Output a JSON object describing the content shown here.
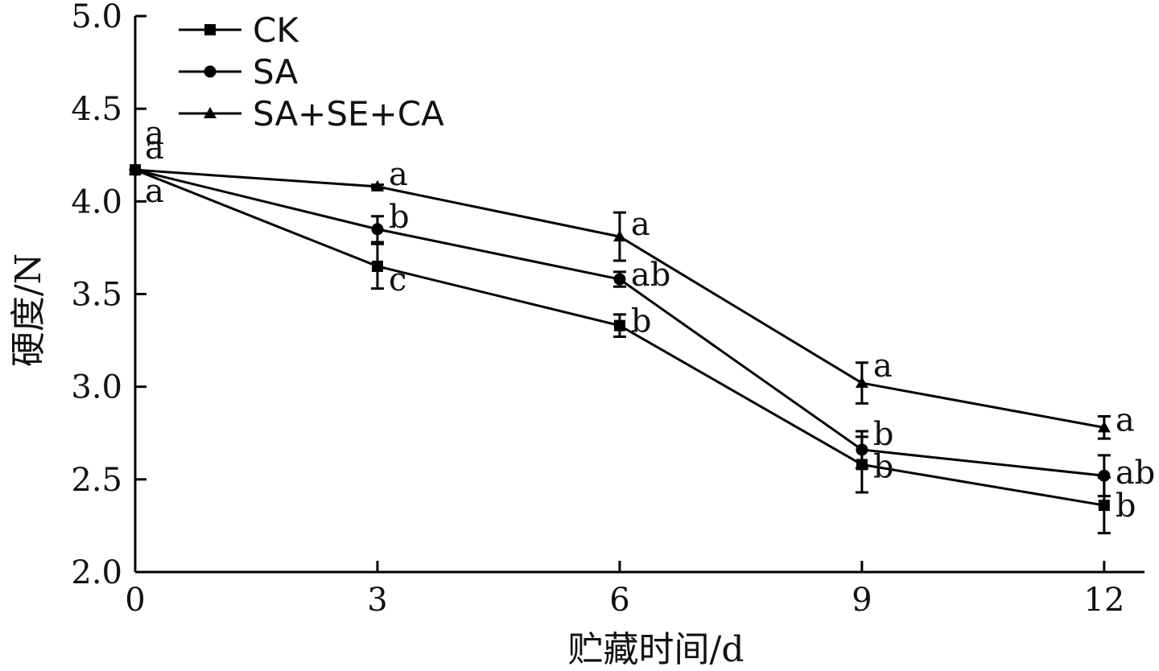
{
  "chart_data": {
    "type": "line",
    "xlabel": "贮藏时间/d",
    "ylabel": "硬度/N",
    "x": [
      0,
      3,
      6,
      9,
      12
    ],
    "x_ticks": [
      "0",
      "3",
      "6",
      "9",
      "12"
    ],
    "y_ticks": [
      "2.0",
      "2.5",
      "3.0",
      "3.5",
      "4.0",
      "4.5",
      "5.0"
    ],
    "xlim": [
      0,
      12.5
    ],
    "ylim": [
      2.0,
      5.0
    ],
    "grid": false,
    "legend_position": "top-left",
    "series": [
      {
        "name": "CK",
        "marker": "square",
        "values": [
          4.17,
          3.65,
          3.33,
          2.58,
          2.36
        ],
        "errors": [
          0.0,
          0.12,
          0.06,
          0.15,
          0.15
        ],
        "labels": [
          "a",
          "c",
          "b",
          "b",
          "b"
        ]
      },
      {
        "name": "SA",
        "marker": "circle",
        "values": [
          4.17,
          3.85,
          3.58,
          2.66,
          2.52
        ],
        "errors": [
          0.0,
          0.07,
          0.04,
          0.1,
          0.11
        ],
        "labels": [
          "a",
          "b",
          "ab",
          "b",
          "ab"
        ]
      },
      {
        "name": "SA+SE+CA",
        "marker": "triangle",
        "values": [
          4.17,
          4.08,
          3.81,
          3.02,
          2.78
        ],
        "errors": [
          0.0,
          0.01,
          0.13,
          0.11,
          0.06
        ],
        "labels": [
          "a",
          "a",
          "a",
          "a",
          "a"
        ]
      }
    ]
  }
}
